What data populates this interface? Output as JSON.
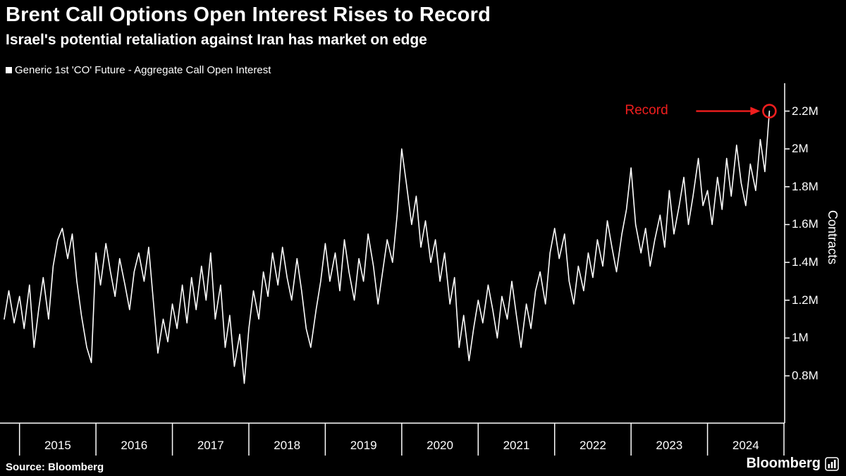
{
  "header": {
    "title": "Brent Call Options Open Interest Rises to Record",
    "subtitle": "Israel's potential retaliation against Iran has market on edge"
  },
  "legend": {
    "label": "Generic 1st 'CO' Future - Aggregate Call Open Interest"
  },
  "footer": {
    "source": "Source: Bloomberg",
    "logo": "Bloomberg"
  },
  "colors": {
    "background": "#000000",
    "foreground": "#ffffff",
    "accent_red": "#f01e1e"
  },
  "chart_data": {
    "type": "line",
    "title": "Brent Call Options Open Interest Rises to Record",
    "subtitle": "Israel's potential retaliation against Iran has market on edge",
    "series_name": "Generic 1st 'CO' Future - Aggregate Call Open Interest",
    "ylabel": "Contracts",
    "xlabel": "",
    "x_unit": "year (decimal)",
    "y_unit": "contracts (millions)",
    "grid": false,
    "legend_position": "top-left",
    "xlim": [
      2014.8,
      2025.0
    ],
    "ylim": [
      0.55,
      2.34
    ],
    "yticks": [
      {
        "value": 0.8,
        "label": "0.8M"
      },
      {
        "value": 1.0,
        "label": "1M"
      },
      {
        "value": 1.2,
        "label": "1.2M"
      },
      {
        "value": 1.4,
        "label": "1.4M"
      },
      {
        "value": 1.6,
        "label": "1.6M"
      },
      {
        "value": 1.8,
        "label": "1.8M"
      },
      {
        "value": 2.0,
        "label": "2M"
      },
      {
        "value": 2.2,
        "label": "2.2M"
      }
    ],
    "xticks": [
      {
        "year": 2015,
        "label": "2015"
      },
      {
        "year": 2016,
        "label": "2016"
      },
      {
        "year": 2017,
        "label": "2017"
      },
      {
        "year": 2018,
        "label": "2018"
      },
      {
        "year": 2019,
        "label": "2019"
      },
      {
        "year": 2020,
        "label": "2020"
      },
      {
        "year": 2021,
        "label": "2021"
      },
      {
        "year": 2022,
        "label": "2022"
      },
      {
        "year": 2023,
        "label": "2023"
      },
      {
        "year": 2024,
        "label": "2024"
      }
    ],
    "annotation": {
      "label": "Record",
      "x": 2024.81,
      "y": 2.2
    },
    "points": [
      [
        2014.8,
        1.1
      ],
      [
        2014.86,
        1.25
      ],
      [
        2014.93,
        1.08
      ],
      [
        2015.0,
        1.22
      ],
      [
        2015.06,
        1.05
      ],
      [
        2015.13,
        1.28
      ],
      [
        2015.19,
        0.95
      ],
      [
        2015.25,
        1.15
      ],
      [
        2015.31,
        1.32
      ],
      [
        2015.38,
        1.1
      ],
      [
        2015.44,
        1.38
      ],
      [
        2015.5,
        1.52
      ],
      [
        2015.56,
        1.58
      ],
      [
        2015.63,
        1.42
      ],
      [
        2015.69,
        1.55
      ],
      [
        2015.75,
        1.3
      ],
      [
        2015.81,
        1.12
      ],
      [
        2015.88,
        0.95
      ],
      [
        2015.94,
        0.87
      ],
      [
        2016.0,
        1.45
      ],
      [
        2016.06,
        1.28
      ],
      [
        2016.13,
        1.5
      ],
      [
        2016.19,
        1.35
      ],
      [
        2016.25,
        1.22
      ],
      [
        2016.31,
        1.42
      ],
      [
        2016.38,
        1.28
      ],
      [
        2016.44,
        1.15
      ],
      [
        2016.5,
        1.35
      ],
      [
        2016.56,
        1.45
      ],
      [
        2016.63,
        1.3
      ],
      [
        2016.69,
        1.48
      ],
      [
        2016.75,
        1.2
      ],
      [
        2016.81,
        0.92
      ],
      [
        2016.88,
        1.1
      ],
      [
        2016.94,
        0.98
      ],
      [
        2017.0,
        1.18
      ],
      [
        2017.06,
        1.05
      ],
      [
        2017.13,
        1.28
      ],
      [
        2017.19,
        1.08
      ],
      [
        2017.25,
        1.32
      ],
      [
        2017.31,
        1.15
      ],
      [
        2017.38,
        1.38
      ],
      [
        2017.44,
        1.2
      ],
      [
        2017.5,
        1.45
      ],
      [
        2017.56,
        1.1
      ],
      [
        2017.63,
        1.28
      ],
      [
        2017.69,
        0.95
      ],
      [
        2017.75,
        1.12
      ],
      [
        2017.81,
        0.85
      ],
      [
        2017.88,
        1.02
      ],
      [
        2017.94,
        0.76
      ],
      [
        2018.0,
        1.05
      ],
      [
        2018.06,
        1.25
      ],
      [
        2018.13,
        1.1
      ],
      [
        2018.19,
        1.35
      ],
      [
        2018.25,
        1.22
      ],
      [
        2018.31,
        1.45
      ],
      [
        2018.38,
        1.28
      ],
      [
        2018.44,
        1.48
      ],
      [
        2018.5,
        1.32
      ],
      [
        2018.56,
        1.2
      ],
      [
        2018.63,
        1.42
      ],
      [
        2018.69,
        1.25
      ],
      [
        2018.75,
        1.05
      ],
      [
        2018.81,
        0.95
      ],
      [
        2018.88,
        1.15
      ],
      [
        2018.94,
        1.3
      ],
      [
        2019.0,
        1.5
      ],
      [
        2019.06,
        1.3
      ],
      [
        2019.13,
        1.45
      ],
      [
        2019.19,
        1.25
      ],
      [
        2019.25,
        1.52
      ],
      [
        2019.31,
        1.35
      ],
      [
        2019.38,
        1.2
      ],
      [
        2019.44,
        1.42
      ],
      [
        2019.5,
        1.3
      ],
      [
        2019.56,
        1.55
      ],
      [
        2019.63,
        1.38
      ],
      [
        2019.69,
        1.18
      ],
      [
        2019.75,
        1.35
      ],
      [
        2019.81,
        1.52
      ],
      [
        2019.88,
        1.4
      ],
      [
        2019.94,
        1.65
      ],
      [
        2020.0,
        2.0
      ],
      [
        2020.06,
        1.82
      ],
      [
        2020.13,
        1.6
      ],
      [
        2020.19,
        1.75
      ],
      [
        2020.25,
        1.48
      ],
      [
        2020.31,
        1.62
      ],
      [
        2020.38,
        1.4
      ],
      [
        2020.44,
        1.52
      ],
      [
        2020.5,
        1.3
      ],
      [
        2020.56,
        1.45
      ],
      [
        2020.63,
        1.18
      ],
      [
        2020.69,
        1.32
      ],
      [
        2020.75,
        0.95
      ],
      [
        2020.81,
        1.12
      ],
      [
        2020.88,
        0.88
      ],
      [
        2020.94,
        1.05
      ],
      [
        2021.0,
        1.2
      ],
      [
        2021.06,
        1.08
      ],
      [
        2021.13,
        1.28
      ],
      [
        2021.19,
        1.15
      ],
      [
        2021.25,
        1.0
      ],
      [
        2021.31,
        1.22
      ],
      [
        2021.38,
        1.1
      ],
      [
        2021.44,
        1.3
      ],
      [
        2021.5,
        1.12
      ],
      [
        2021.56,
        0.95
      ],
      [
        2021.63,
        1.18
      ],
      [
        2021.69,
        1.05
      ],
      [
        2021.75,
        1.25
      ],
      [
        2021.81,
        1.35
      ],
      [
        2021.88,
        1.18
      ],
      [
        2021.94,
        1.45
      ],
      [
        2022.0,
        1.58
      ],
      [
        2022.06,
        1.42
      ],
      [
        2022.13,
        1.55
      ],
      [
        2022.19,
        1.3
      ],
      [
        2022.25,
        1.18
      ],
      [
        2022.31,
        1.38
      ],
      [
        2022.38,
        1.25
      ],
      [
        2022.44,
        1.45
      ],
      [
        2022.5,
        1.32
      ],
      [
        2022.56,
        1.52
      ],
      [
        2022.63,
        1.38
      ],
      [
        2022.69,
        1.62
      ],
      [
        2022.75,
        1.48
      ],
      [
        2022.81,
        1.35
      ],
      [
        2022.88,
        1.55
      ],
      [
        2022.94,
        1.68
      ],
      [
        2023.0,
        1.9
      ],
      [
        2023.06,
        1.6
      ],
      [
        2023.13,
        1.45
      ],
      [
        2023.19,
        1.58
      ],
      [
        2023.25,
        1.38
      ],
      [
        2023.31,
        1.52
      ],
      [
        2023.38,
        1.65
      ],
      [
        2023.44,
        1.48
      ],
      [
        2023.5,
        1.78
      ],
      [
        2023.56,
        1.55
      ],
      [
        2023.63,
        1.7
      ],
      [
        2023.69,
        1.85
      ],
      [
        2023.75,
        1.6
      ],
      [
        2023.81,
        1.75
      ],
      [
        2023.88,
        1.95
      ],
      [
        2023.94,
        1.7
      ],
      [
        2024.0,
        1.78
      ],
      [
        2024.06,
        1.6
      ],
      [
        2024.13,
        1.85
      ],
      [
        2024.19,
        1.68
      ],
      [
        2024.25,
        1.95
      ],
      [
        2024.31,
        1.75
      ],
      [
        2024.38,
        2.02
      ],
      [
        2024.44,
        1.82
      ],
      [
        2024.5,
        1.7
      ],
      [
        2024.56,
        1.92
      ],
      [
        2024.63,
        1.78
      ],
      [
        2024.69,
        2.05
      ],
      [
        2024.75,
        1.88
      ],
      [
        2024.81,
        2.2
      ]
    ]
  }
}
